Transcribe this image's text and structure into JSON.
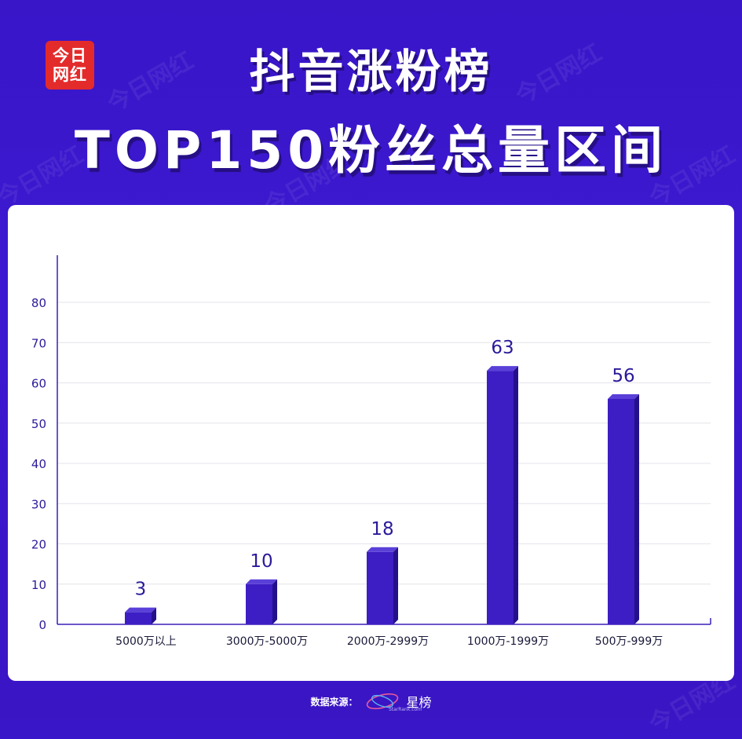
{
  "logo": {
    "line1": "今日",
    "line2": "网红"
  },
  "title": {
    "line1": "抖音涨粉榜",
    "line2": "TOP150粉丝总量区间"
  },
  "watermark_text": "今日网红",
  "colors": {
    "background": "#3a16c9",
    "bar_front": "#3d1ec4",
    "bar_side": "#24108a",
    "bar_top": "#5a40d8",
    "axis": "#3b1fb8",
    "label": "#2a1a9a"
  },
  "chart_data": {
    "type": "bar",
    "categories": [
      "5000万以上",
      "3000万-5000万",
      "2000万-2999万",
      "1000万-1999万",
      "500万-999万"
    ],
    "values": [
      3,
      10,
      18,
      63,
      56
    ],
    "title": "",
    "xlabel": "",
    "ylabel": "",
    "ylim": [
      0,
      80
    ],
    "yticks": [
      0,
      10,
      20,
      30,
      40,
      50,
      60,
      70,
      80
    ],
    "grid": true
  },
  "footer": {
    "source_label": "数据来源：",
    "brand": "星榜",
    "brand_sub": "StarRank.com"
  }
}
